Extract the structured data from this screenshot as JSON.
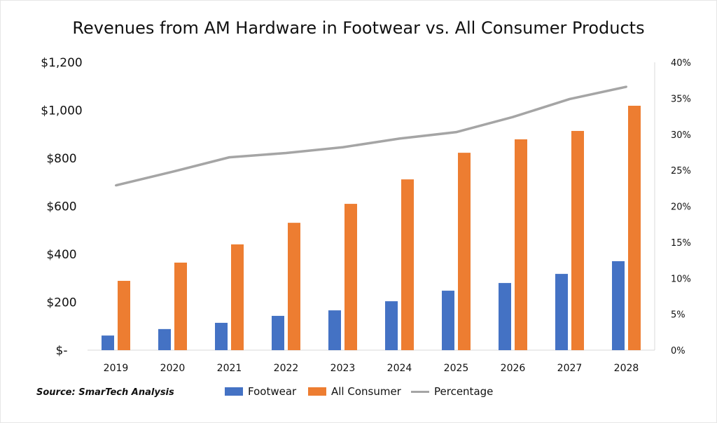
{
  "chart_data": {
    "type": "bar",
    "title": "Revenues from AM Hardware in Footwear vs. All Consumer Products",
    "categories": [
      "2019",
      "2020",
      "2021",
      "2022",
      "2023",
      "2024",
      "2025",
      "2026",
      "2027",
      "2028"
    ],
    "series": [
      {
        "name": "Footwear",
        "type": "bar",
        "axis": "left",
        "color": "#4472c4",
        "values": [
          61,
          88,
          114,
          143,
          166,
          204,
          248,
          280,
          318,
          371
        ]
      },
      {
        "name": "All Consumer",
        "type": "bar",
        "axis": "left",
        "color": "#ed7d31",
        "values": [
          289,
          365,
          441,
          531,
          610,
          712,
          823,
          879,
          914,
          1019
        ]
      },
      {
        "name": "Percentage",
        "type": "line",
        "axis": "right",
        "color": "#a5a5a5",
        "values": [
          22.9,
          24.8,
          26.8,
          27.4,
          28.2,
          29.4,
          30.3,
          32.4,
          34.9,
          36.6
        ]
      }
    ],
    "y_left": {
      "ylim": [
        0,
        1200
      ],
      "ticks": [
        0,
        200,
        400,
        600,
        800,
        1000,
        1200
      ],
      "tick_labels": [
        "$-",
        "$200",
        "$400",
        "$600",
        "$800",
        "$1,000",
        "$1,200"
      ]
    },
    "y_right": {
      "ylim": [
        0,
        40
      ],
      "ticks": [
        0,
        5,
        10,
        15,
        20,
        25,
        30,
        35,
        40
      ],
      "tick_labels": [
        "0%",
        "5%",
        "10%",
        "15%",
        "20%",
        "25%",
        "30%",
        "35%",
        "40%"
      ]
    },
    "grid": false,
    "legend": "bottom",
    "source": "Source: SmarTech Analysis"
  }
}
